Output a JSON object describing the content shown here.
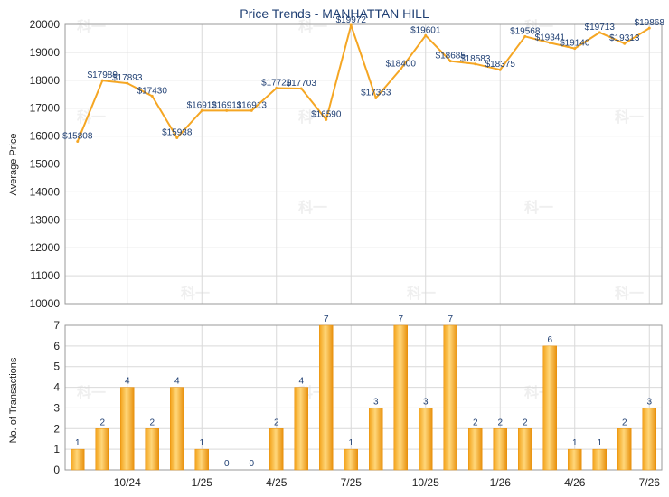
{
  "chart_data": [
    {
      "type": "line",
      "title": "Price Trends - MANHATTAN HILL",
      "ylabel": "Average Price",
      "ylim": [
        10000,
        20000
      ],
      "yticks": [
        10000,
        11000,
        12000,
        13000,
        14000,
        15000,
        16000,
        17000,
        18000,
        19000,
        20000
      ],
      "line_color": "#f5a623",
      "series": [
        {
          "values": [
            15808,
            17989,
            17893,
            17430,
            15938,
            16913,
            16913,
            16913,
            17720,
            17703,
            16590,
            19972,
            17363,
            18400,
            19601,
            18685,
            18583,
            18375,
            19568,
            19341,
            19140,
            19713,
            19313,
            19868
          ],
          "labels": [
            "$15808",
            "$17989",
            "$17893",
            "$17430",
            "$15938",
            "$16913",
            "$16913",
            "$16913",
            "$17720",
            "$17703",
            "$16590",
            "$19972",
            "$17363",
            "$18400",
            "$19601",
            "$18685",
            "$18583",
            "$18375",
            "$19568",
            "$19341",
            "$19140",
            "$19713",
            "$19313",
            "$19868"
          ]
        }
      ]
    },
    {
      "type": "bar",
      "ylabel": "No. of Transactions",
      "ylim": [
        0,
        7
      ],
      "yticks": [
        0,
        1,
        2,
        3,
        4,
        5,
        6,
        7
      ],
      "bar_color": "#f5a623",
      "x_tick_labels": [
        "10/24",
        "1/25",
        "4/25",
        "7/25",
        "10/25",
        "1/26",
        "4/26",
        "7/26"
      ],
      "values": [
        1,
        2,
        4,
        2,
        4,
        1,
        0,
        0,
        2,
        4,
        7,
        1,
        3,
        7,
        3,
        7,
        2,
        2,
        2,
        6,
        1,
        1,
        2,
        3
      ]
    }
  ],
  "watermark": "科一"
}
